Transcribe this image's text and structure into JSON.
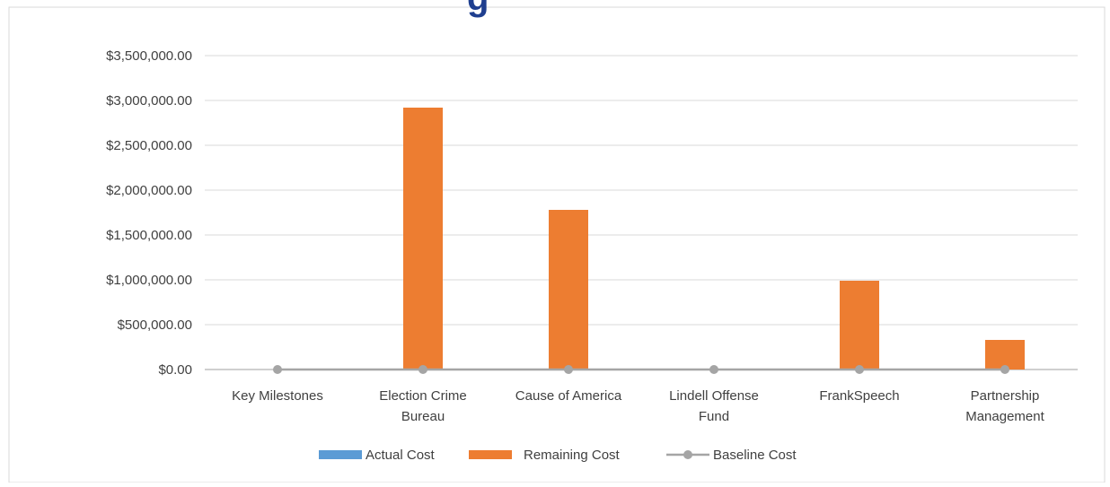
{
  "chart_data": {
    "type": "bar",
    "title_fragment": "g",
    "categories": [
      "Key Milestones",
      "Election Crime Bureau",
      "Cause of America",
      "Lindell Offense Fund",
      "FrankSpeech",
      "Partnership Management"
    ],
    "category_lines": [
      [
        "Key Milestones"
      ],
      [
        "Election Crime",
        "Bureau"
      ],
      [
        "Cause of America"
      ],
      [
        "Lindell Offense",
        "Fund"
      ],
      [
        "FrankSpeech"
      ],
      [
        "Partnership",
        "Management"
      ]
    ],
    "series": [
      {
        "name": "Actual Cost",
        "kind": "bar",
        "color": "#5b9bd5",
        "values": [
          0,
          0,
          0,
          0,
          0,
          0
        ]
      },
      {
        "name": "Remaining Cost",
        "kind": "bar",
        "color": "#ed7d31",
        "values": [
          0,
          2920000,
          1780000,
          0,
          990000,
          330000
        ]
      },
      {
        "name": "Baseline Cost",
        "kind": "line",
        "color": "#a5a5a5",
        "values": [
          0,
          0,
          0,
          0,
          0,
          0
        ]
      }
    ],
    "yticks": [
      "$0.00",
      "$500,000.00",
      "$1,000,000.00",
      "$1,500,000.00",
      "$2,000,000.00",
      "$2,500,000.00",
      "$3,000,000.00",
      "$3,500,000.00"
    ],
    "ylim": [
      0,
      3500000
    ],
    "grid": true,
    "legend": "bottom",
    "colors": {
      "gridline": "#d9d9d9",
      "axis": "#bfbfbf",
      "text": "#404040"
    }
  }
}
